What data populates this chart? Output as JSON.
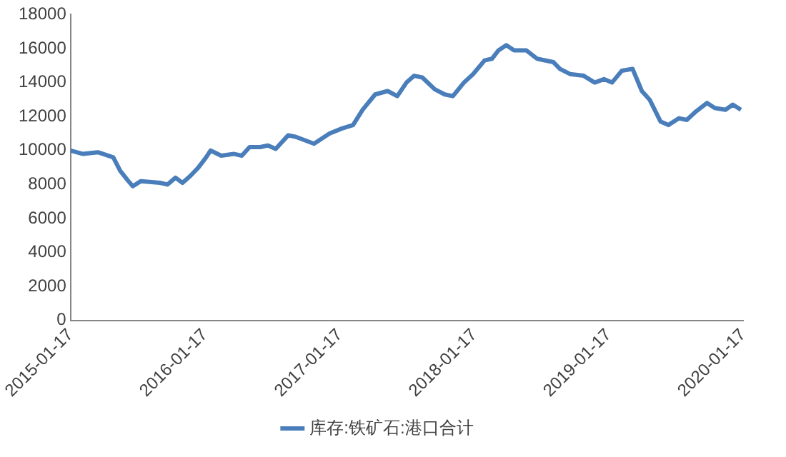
{
  "chart_data": {
    "type": "line",
    "x": [
      "2015-01-17",
      "2015-02-20",
      "2015-04-01",
      "2015-05-13",
      "2015-06-01",
      "2015-06-23",
      "2015-07-05",
      "2015-07-27",
      "2015-09-17",
      "2015-10-07",
      "2015-10-29",
      "2015-11-17",
      "2015-12-08",
      "2015-12-30",
      "2016-01-20",
      "2016-02-01",
      "2016-03-01",
      "2016-04-05",
      "2016-04-26",
      "2016-05-17",
      "2016-06-15",
      "2016-07-06",
      "2016-07-27",
      "2016-08-30",
      "2016-09-20",
      "2016-11-08",
      "2016-12-20",
      "2017-01-23",
      "2017-02-22",
      "2017-03-20",
      "2017-04-23",
      "2017-05-27",
      "2017-06-22",
      "2017-07-17",
      "2017-08-07",
      "2017-08-29",
      "2017-10-02",
      "2017-10-29",
      "2017-11-20",
      "2017-12-20",
      "2018-01-14",
      "2018-02-14",
      "2018-03-06",
      "2018-03-24",
      "2018-04-14",
      "2018-05-05",
      "2018-06-07",
      "2018-07-07",
      "2018-08-20",
      "2018-09-07",
      "2018-10-04",
      "2018-11-10",
      "2018-12-10",
      "2019-01-04",
      "2019-01-26",
      "2019-02-22",
      "2019-03-23",
      "2019-04-17",
      "2019-05-08",
      "2019-06-07",
      "2019-06-28",
      "2019-07-27",
      "2019-08-17",
      "2019-09-11",
      "2019-10-11",
      "2019-11-01",
      "2019-11-30",
      "2019-12-20",
      "2020-01-11"
    ],
    "series": [
      {
        "name": "库存:铁矿石:港口合计",
        "color": "#4a7ebb",
        "values": [
          10000,
          9800,
          9900,
          9600,
          8800,
          8200,
          7900,
          8200,
          8100,
          8000,
          8400,
          8100,
          8500,
          9000,
          9600,
          10000,
          9700,
          9800,
          9700,
          10200,
          10200,
          10300,
          10100,
          10900,
          10800,
          10400,
          11000,
          11300,
          11500,
          12400,
          13300,
          13500,
          13200,
          14000,
          14400,
          14300,
          13600,
          13300,
          13200,
          14000,
          14500,
          15300,
          15400,
          15900,
          16200,
          15900,
          15900,
          15400,
          15200,
          14800,
          14500,
          14400,
          14000,
          14200,
          14000,
          14700,
          14800,
          13500,
          13000,
          11700,
          11500,
          11900,
          11800,
          12300,
          12800,
          12500,
          12400,
          12700,
          12400
        ]
      }
    ],
    "xlim": [
      "2015-01-17",
      "2020-01-17"
    ],
    "xticks": [
      "2015-01-17",
      "2016-01-17",
      "2017-01-17",
      "2018-01-17",
      "2019-01-17",
      "2020-01-17"
    ],
    "ylim": [
      0,
      18000
    ],
    "yticks": [
      0,
      2000,
      4000,
      6000,
      8000,
      10000,
      12000,
      14000,
      16000,
      18000
    ],
    "grid": false,
    "legend": "bottom",
    "marker": "none",
    "line_style": "solid"
  }
}
